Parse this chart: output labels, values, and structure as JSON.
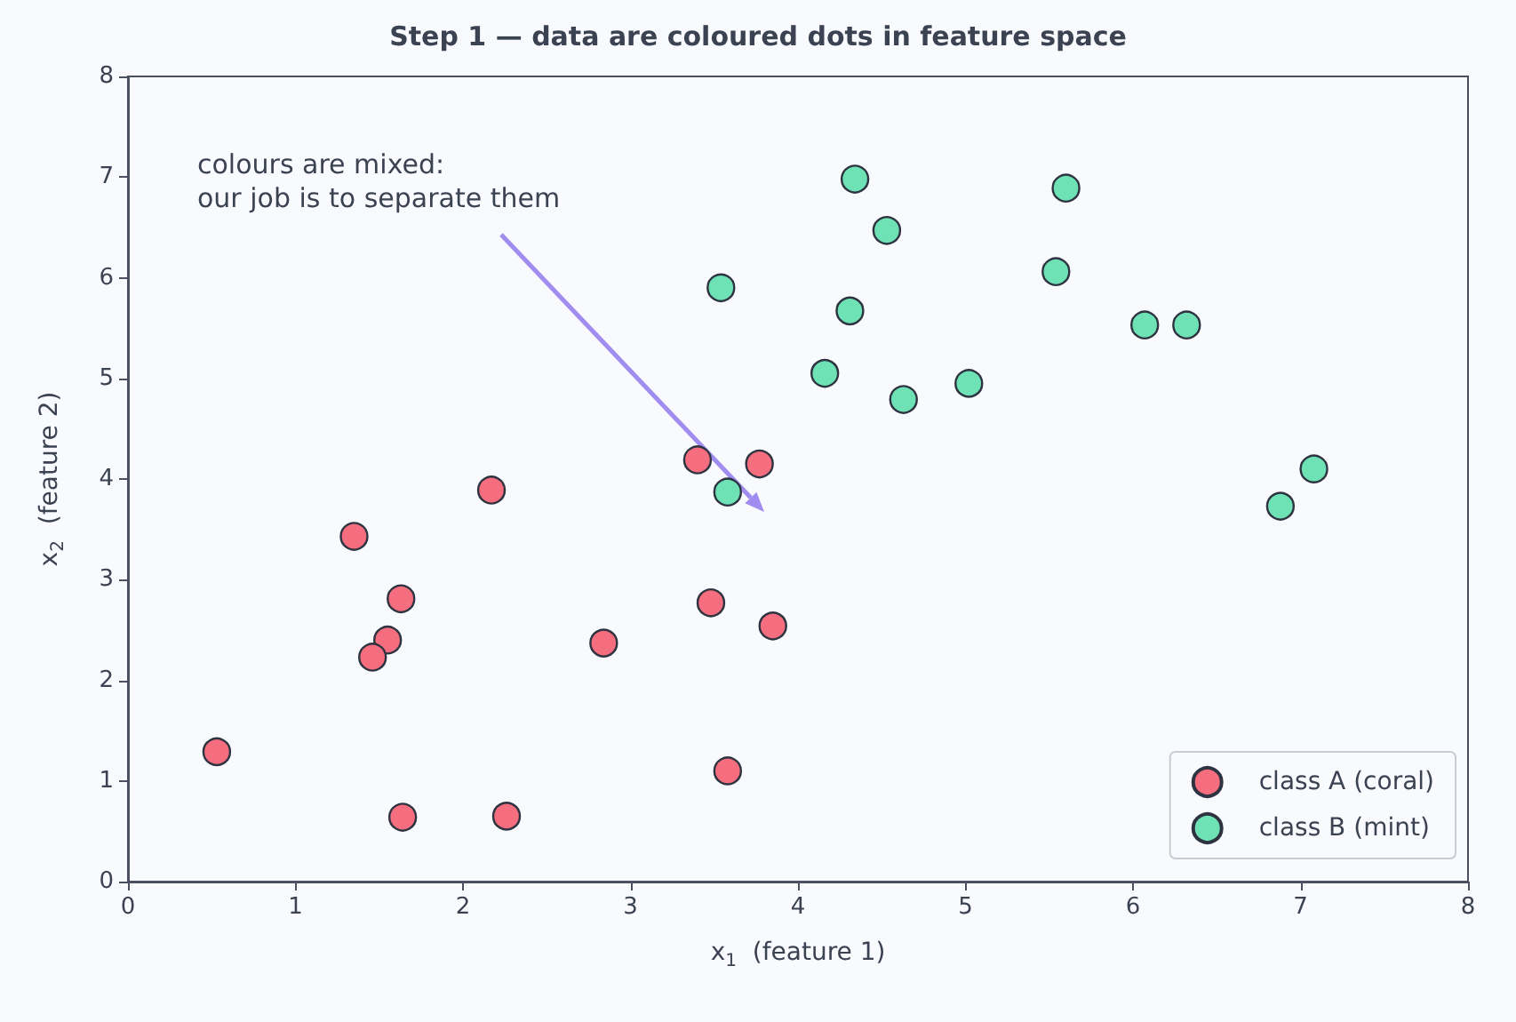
{
  "chart_data": {
    "type": "scatter",
    "title": "Step 1 — data are coloured dots in feature space",
    "xlabel": "x$_{1}$  (feature 1)",
    "ylabel": "x$_{2}$  (feature 2)",
    "annotations": [
      "colours are mixed:\nour job is to separate them"
    ],
    "xlim": [
      0,
      8
    ],
    "ylim": [
      0,
      8
    ],
    "xticks": [
      0,
      1,
      2,
      3,
      4,
      5,
      6,
      7,
      8
    ],
    "yticks": [
      0,
      1,
      2,
      3,
      4,
      5,
      6,
      7,
      8
    ],
    "grid": false,
    "legend": "bottom right",
    "marker": "circle",
    "series": [
      {
        "name": "class A (coral)",
        "color": "#f56e7f",
        "x": [
          0.53,
          1.35,
          1.63,
          1.55,
          1.46,
          1.64,
          2.17,
          2.26,
          2.84,
          3.4,
          3.48,
          3.77,
          3.85,
          3.58
        ],
        "values": [
          1.29,
          3.43,
          2.81,
          2.4,
          2.23,
          0.64,
          3.89,
          0.65,
          2.37,
          4.19,
          2.77,
          4.15,
          2.54,
          1.1
        ]
      },
      {
        "name": "class B (mint)",
        "color": "#6ee2b4",
        "x": [
          3.54,
          3.58,
          4.34,
          4.31,
          4.53,
          4.16,
          4.63,
          5.02,
          5.54,
          5.6,
          6.07,
          6.32,
          6.88,
          7.08
        ],
        "values": [
          5.9,
          3.87,
          6.98,
          5.67,
          6.47,
          5.05,
          4.79,
          4.95,
          6.06,
          6.89,
          5.53,
          5.53,
          3.73,
          4.1
        ]
      }
    ]
  }
}
